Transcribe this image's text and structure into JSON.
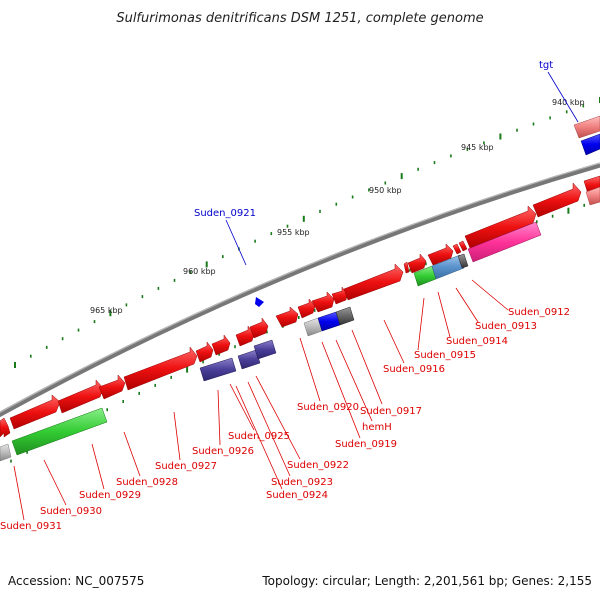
{
  "title": "Sulfurimonas denitrificans DSM 1251, complete genome",
  "footer": {
    "accession": "Accession: NC_007575",
    "summary": "Topology: circular; Length: 2,201,561 bp; Genes: 2,155"
  },
  "colors": {
    "red_gene": "#ee1111",
    "red_label": "#dd0000",
    "blue_label": "#0000cc",
    "backbone": "#777777",
    "tick": "#1a7a1a"
  },
  "scale_labels": [
    "940 kbp",
    "945 kbp",
    "950 kbp",
    "955 kbp",
    "960 kbp",
    "965 kbp"
  ],
  "labels_top": [
    "tgt",
    "Suden_0921"
  ],
  "labels_bottom": [
    "Suden_0912",
    "Suden_0913",
    "Suden_0914",
    "Suden_0915",
    "Suden_0916",
    "Suden_0917",
    "hemH",
    "Suden_0919",
    "Suden_0920",
    "Suden_0922",
    "Suden_0923",
    "Suden_0924",
    "Suden_0925",
    "Suden_0926",
    "Suden_0927",
    "Suden_0928",
    "Suden_0929",
    "Suden_0930",
    "Suden_0931"
  ]
}
